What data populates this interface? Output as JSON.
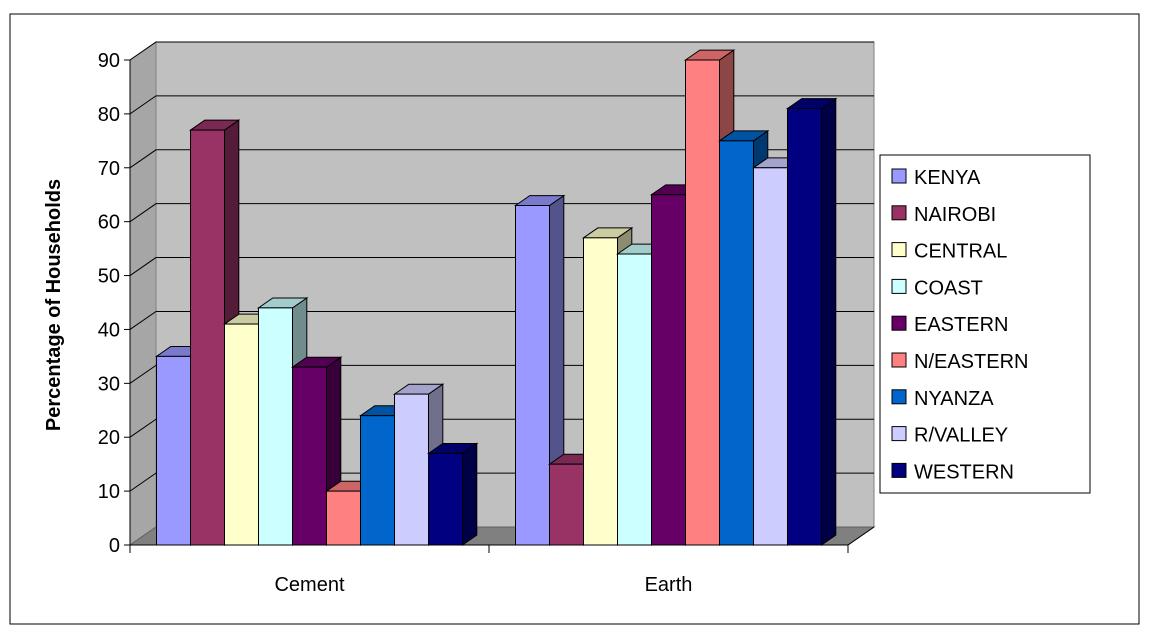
{
  "chart_data": {
    "type": "bar",
    "title": "",
    "xlabel": "",
    "ylabel": "Percentage of Households",
    "ylim": [
      0,
      90
    ],
    "yticks": [
      0,
      10,
      20,
      30,
      40,
      50,
      60,
      70,
      80,
      90
    ],
    "grid": true,
    "three_d": true,
    "legend": "right",
    "categories": [
      "Cement",
      "Earth"
    ],
    "series": [
      {
        "name": "KENYA",
        "color": "#9999ff",
        "values": [
          35,
          63
        ]
      },
      {
        "name": "NAIROBI",
        "color": "#993366",
        "values": [
          77,
          15
        ]
      },
      {
        "name": "CENTRAL",
        "color": "#ffffcc",
        "values": [
          41,
          57
        ]
      },
      {
        "name": "COAST",
        "color": "#ccffff",
        "values": [
          44,
          54
        ]
      },
      {
        "name": "EASTERN",
        "color": "#660066",
        "values": [
          33,
          65
        ]
      },
      {
        "name": "N/EASTERN",
        "color": "#ff8080",
        "values": [
          10,
          90
        ]
      },
      {
        "name": "NYANZA",
        "color": "#0066cc",
        "values": [
          24,
          75
        ]
      },
      {
        "name": "R/VALLEY",
        "color": "#ccccff",
        "values": [
          28,
          70
        ]
      },
      {
        "name": "WESTERN",
        "color": "#000080",
        "values": [
          17,
          81
        ]
      }
    ]
  }
}
